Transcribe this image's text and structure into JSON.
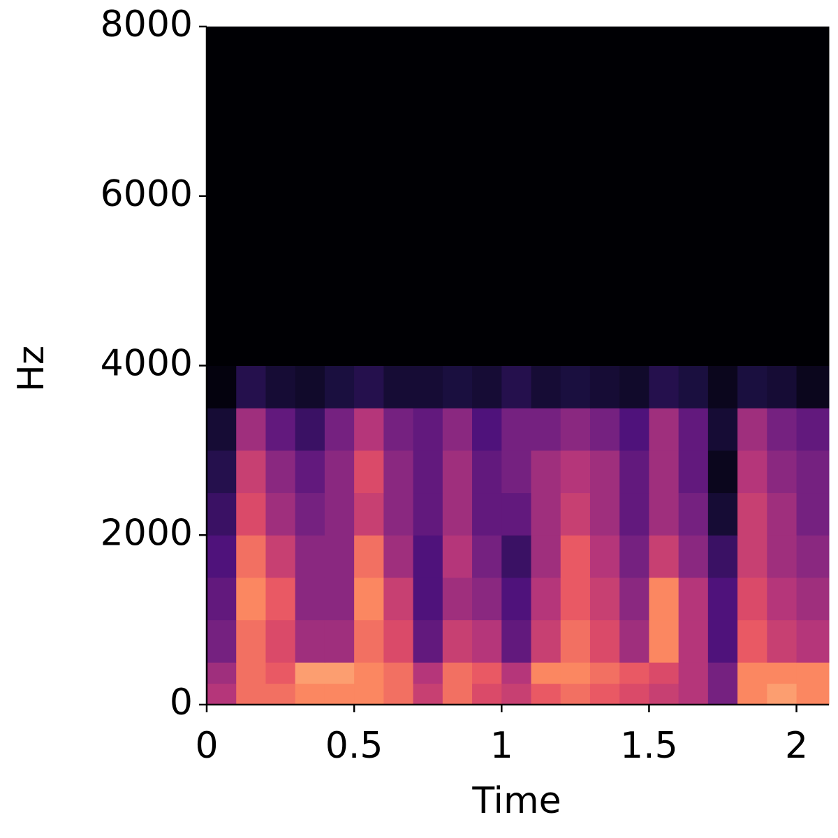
{
  "chart_data": {
    "type": "heatmap",
    "xlabel": "Time",
    "ylabel": "Hz",
    "colormap": "magma",
    "xlim": [
      0,
      2.11
    ],
    "ylim": [
      0,
      8000
    ],
    "xticks": [
      0,
      0.5,
      1,
      1.5,
      2
    ],
    "yticks": [
      0,
      2000,
      4000,
      6000,
      8000
    ],
    "x_bins": [
      0,
      0.1,
      0.2,
      0.3,
      0.4,
      0.5,
      0.6,
      0.7,
      0.8,
      0.9,
      1.0,
      1.1,
      1.2,
      1.3,
      1.4,
      1.5,
      1.6,
      1.7,
      1.8,
      1.9,
      2.0,
      2.11
    ],
    "y_bins": [
      0,
      250,
      500,
      1000,
      1500,
      2000,
      2500,
      3000,
      3500,
      4000,
      8000
    ],
    "z": [
      [
        0.5,
        0.7,
        0.7,
        0.75,
        0.75,
        0.75,
        0.7,
        0.55,
        0.7,
        0.6,
        0.55,
        0.65,
        0.7,
        0.65,
        0.6,
        0.55,
        0.5,
        0.35,
        0.75,
        0.8,
        0.75
      ],
      [
        0.45,
        0.7,
        0.65,
        0.8,
        0.8,
        0.75,
        0.7,
        0.5,
        0.7,
        0.65,
        0.5,
        0.75,
        0.75,
        0.7,
        0.65,
        0.6,
        0.5,
        0.35,
        0.75,
        0.75,
        0.75
      ],
      [
        0.35,
        0.7,
        0.6,
        0.45,
        0.45,
        0.7,
        0.6,
        0.3,
        0.55,
        0.5,
        0.3,
        0.55,
        0.7,
        0.6,
        0.45,
        0.75,
        0.5,
        0.25,
        0.65,
        0.55,
        0.5
      ],
      [
        0.3,
        0.75,
        0.65,
        0.4,
        0.4,
        0.75,
        0.55,
        0.25,
        0.45,
        0.4,
        0.25,
        0.5,
        0.65,
        0.55,
        0.4,
        0.75,
        0.5,
        0.25,
        0.6,
        0.5,
        0.45
      ],
      [
        0.25,
        0.7,
        0.55,
        0.4,
        0.4,
        0.7,
        0.45,
        0.25,
        0.5,
        0.35,
        0.2,
        0.45,
        0.65,
        0.5,
        0.35,
        0.55,
        0.4,
        0.2,
        0.55,
        0.45,
        0.4
      ],
      [
        0.2,
        0.6,
        0.45,
        0.35,
        0.4,
        0.55,
        0.4,
        0.3,
        0.45,
        0.3,
        0.3,
        0.45,
        0.55,
        0.45,
        0.3,
        0.45,
        0.35,
        0.1,
        0.55,
        0.45,
        0.35
      ],
      [
        0.15,
        0.55,
        0.4,
        0.3,
        0.4,
        0.6,
        0.4,
        0.3,
        0.45,
        0.3,
        0.35,
        0.45,
        0.5,
        0.45,
        0.3,
        0.45,
        0.3,
        0.05,
        0.5,
        0.4,
        0.35
      ],
      [
        0.1,
        0.45,
        0.3,
        0.2,
        0.35,
        0.5,
        0.35,
        0.3,
        0.4,
        0.25,
        0.35,
        0.35,
        0.4,
        0.35,
        0.25,
        0.45,
        0.3,
        0.1,
        0.45,
        0.35,
        0.3
      ],
      [
        0.02,
        0.15,
        0.1,
        0.08,
        0.12,
        0.15,
        0.1,
        0.1,
        0.12,
        0.1,
        0.15,
        0.1,
        0.12,
        0.1,
        0.08,
        0.15,
        0.12,
        0.05,
        0.12,
        0.1,
        0.05
      ],
      [
        0,
        0,
        0,
        0,
        0,
        0,
        0,
        0,
        0,
        0,
        0,
        0,
        0,
        0,
        0,
        0,
        0,
        0,
        0,
        0,
        0
      ]
    ]
  }
}
